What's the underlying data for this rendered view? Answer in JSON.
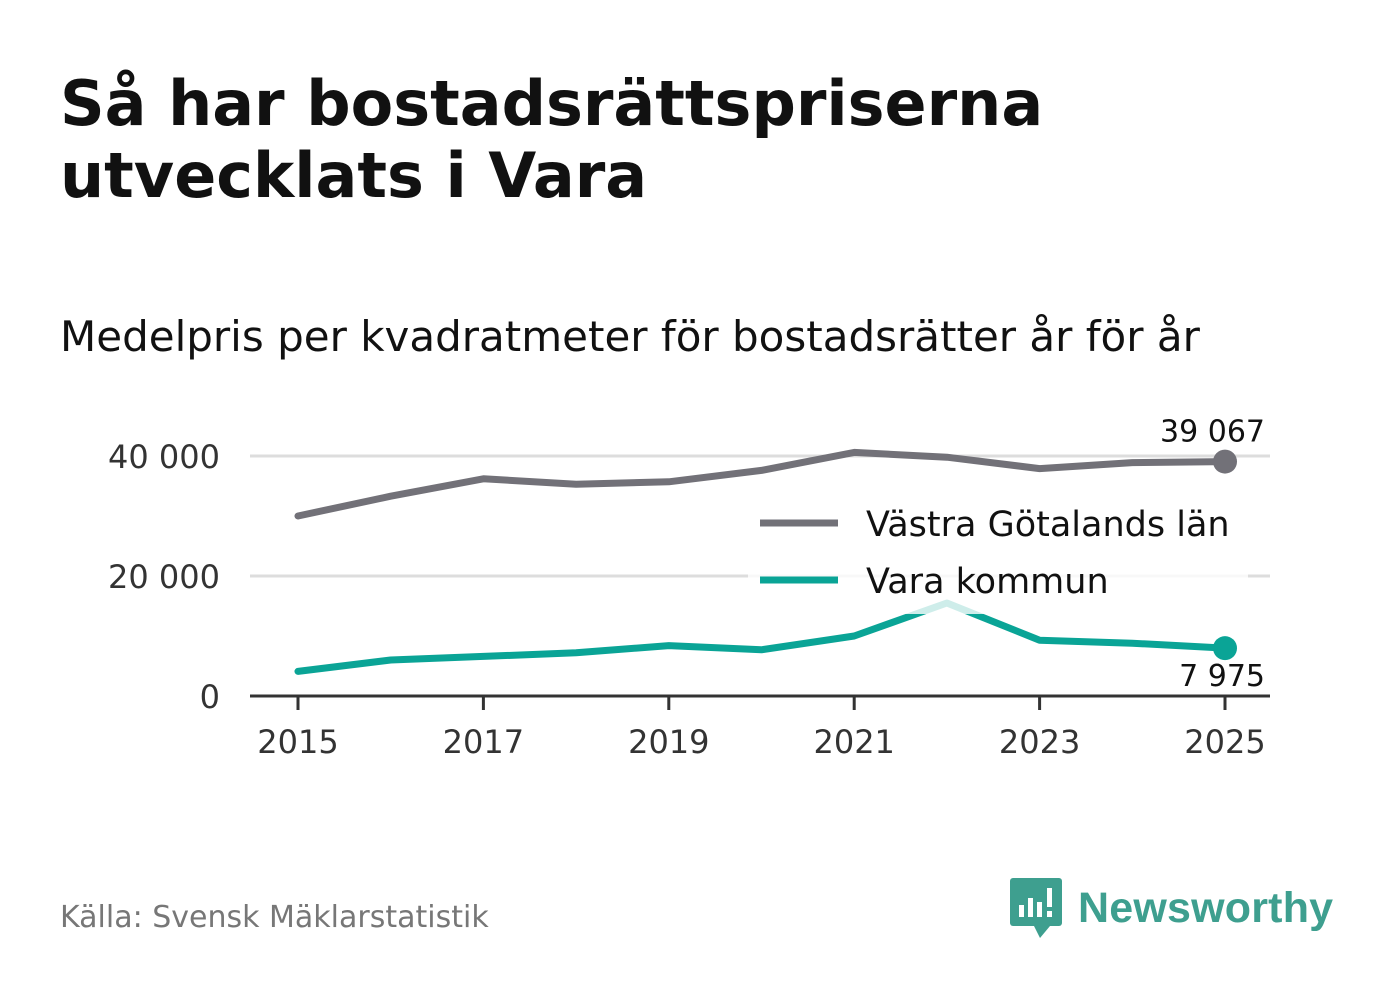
{
  "title": "Så har bostadsrättspriserna utvecklats i Vara",
  "subtitle": "Medelpris per kvadratmeter för bostadsrätter år för år",
  "source": "Källa: Svensk Mäklarstatistik",
  "brand": {
    "name": "Newsworthy",
    "icon": "newsworthy-logo-icon",
    "color": "#3e9f8f"
  },
  "chart_data": {
    "type": "line",
    "x": [
      2015,
      2016,
      2017,
      2018,
      2019,
      2020,
      2021,
      2022,
      2023,
      2024,
      2025
    ],
    "x_ticks": [
      "2015",
      "2017",
      "2019",
      "2021",
      "2023",
      "2025"
    ],
    "y_ticks": [
      {
        "value": 0,
        "label": "0"
      },
      {
        "value": 20000,
        "label": "20 000"
      },
      {
        "value": 40000,
        "label": "40 000"
      }
    ],
    "ylim": [
      0,
      40000
    ],
    "grid": true,
    "legend_position": "right",
    "series": [
      {
        "name": "Västra Götalands län",
        "color": "#727178",
        "values": [
          30000,
          33300,
          36200,
          35300,
          35700,
          37600,
          40600,
          39800,
          37900,
          38900,
          39067
        ],
        "end_label": "39 067"
      },
      {
        "name": "Vara kommun",
        "color": "#0aa496",
        "values": [
          4100,
          6000,
          6600,
          7200,
          8400,
          7700,
          10000,
          15500,
          9300,
          8800,
          7975
        ],
        "end_label": "7 975"
      }
    ]
  }
}
